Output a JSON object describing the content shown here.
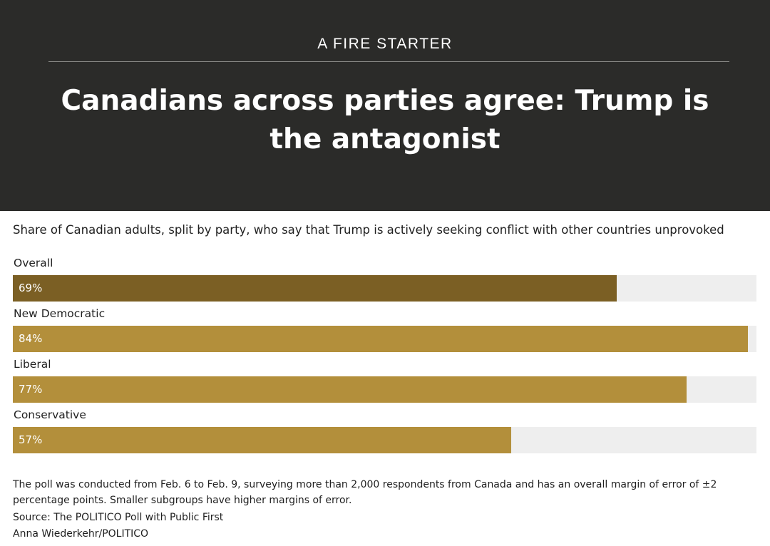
{
  "header": {
    "kicker": "A FIRE STARTER",
    "headline": "Canadians across parties agree: Trump is the antagonist"
  },
  "colors": {
    "header_bg": "#2b2b29",
    "track": "#eeeeee",
    "overall_bar": "#7b5f24",
    "party_bar": "#b38f3b"
  },
  "chart_data": {
    "type": "bar",
    "orientation": "horizontal",
    "title": "Share of Canadian adults, split by party, who say that Trump is actively seeking conflict with other countries unprovoked",
    "categories": [
      "Overall",
      "New Democratic",
      "Liberal",
      "Conservative"
    ],
    "values": [
      69,
      84,
      77,
      57
    ],
    "value_labels": [
      "69%",
      "84%",
      "77%",
      "57%"
    ],
    "xlim": [
      0,
      85
    ],
    "unit": "%",
    "grid": false,
    "legend": "none"
  },
  "footer": {
    "note": "The poll was conducted from Feb. 6 to Feb. 9, surveying more than 2,000 respondents from Canada and has an overall margin of error of ±2 percentage points. Smaller subgroups have higher margins of error.",
    "source": "Source: The POLITICO Poll with Public First",
    "credit": "Anna Wiederkehr/POLITICO"
  }
}
